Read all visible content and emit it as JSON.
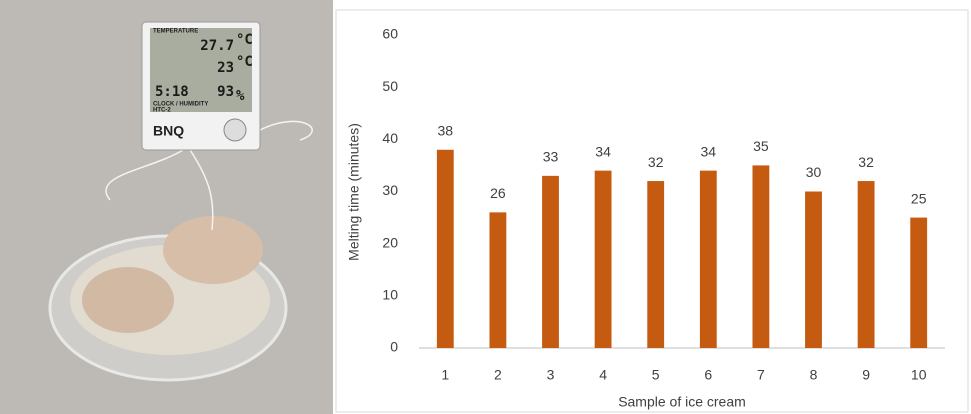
{
  "photo": {
    "device_header": "TEMPERATURE",
    "indoor": "27.7",
    "indoor_unit": "°C",
    "outdoor": "23",
    "outdoor_unit": "°C",
    "clock": "5:18",
    "humidity": "93",
    "humidity_unit": "%",
    "device_footer": "CLOCK / HUMIDITY",
    "brand": "BNQ",
    "model": "HTC-2"
  },
  "chart_data": {
    "type": "bar",
    "x_label": "Sample of ice cream",
    "y_label": "Melting time (minutes)",
    "categories": [
      "1",
      "2",
      "3",
      "4",
      "5",
      "6",
      "7",
      "8",
      "9",
      "10"
    ],
    "values": [
      38,
      26,
      33,
      34,
      32,
      34,
      35,
      30,
      32,
      25
    ],
    "color": "#c55a11",
    "ylim": [
      0,
      60
    ],
    "yticks": [
      0,
      10,
      20,
      30,
      40,
      50,
      60
    ],
    "grid": false,
    "data_labels": true
  }
}
